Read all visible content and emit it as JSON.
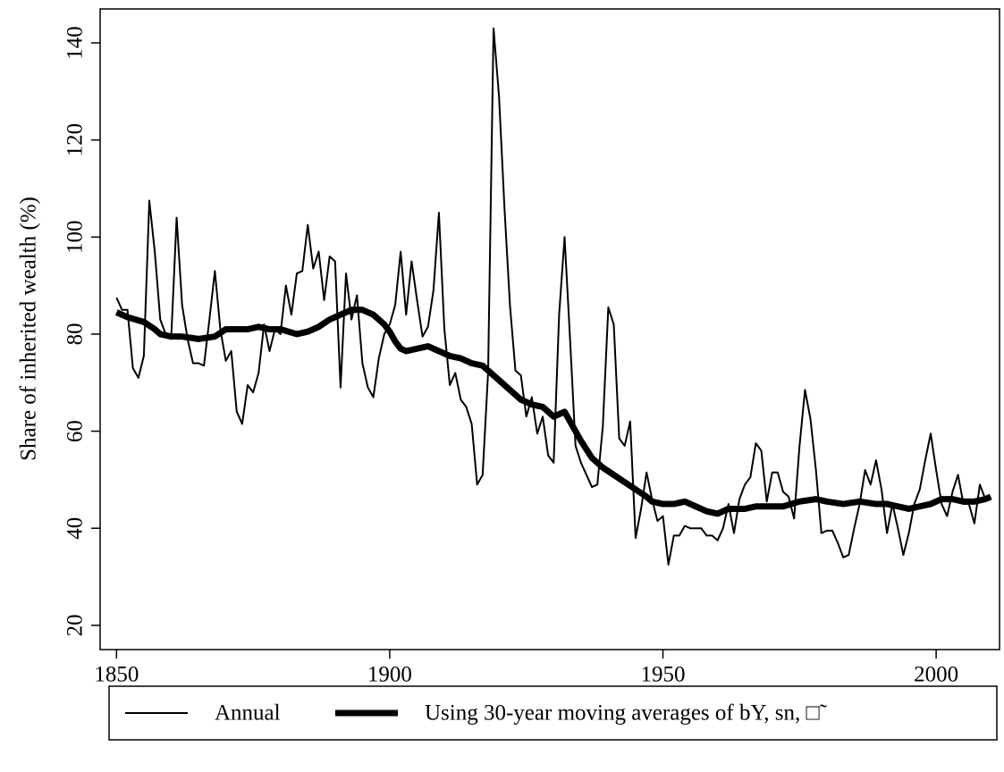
{
  "chart_data": {
    "type": "line",
    "y_label": "Share of inherited wealth (%)",
    "xlim": [
      1847,
      2011.6
    ],
    "ylim": [
      15,
      147
    ],
    "xticks": [
      1850,
      1900,
      1950,
      2000
    ],
    "yticks": [
      20,
      40,
      60,
      80,
      100,
      120,
      140
    ],
    "series": [
      {
        "name": "Annual",
        "color": "#000000",
        "width": 2,
        "x": [
          1850,
          1851,
          1852,
          1853,
          1854,
          1855,
          1856,
          1857,
          1858,
          1859,
          1860,
          1861,
          1862,
          1863,
          1864,
          1865,
          1866,
          1867,
          1868,
          1869,
          1870,
          1871,
          1872,
          1873,
          1874,
          1875,
          1876,
          1877,
          1878,
          1879,
          1880,
          1881,
          1882,
          1883,
          1884,
          1885,
          1886,
          1887,
          1888,
          1889,
          1890,
          1891,
          1892,
          1893,
          1894,
          1895,
          1896,
          1897,
          1898,
          1899,
          1900,
          1901,
          1902,
          1903,
          1904,
          1905,
          1906,
          1907,
          1908,
          1909,
          1910,
          1911,
          1912,
          1913,
          1914,
          1915,
          1916,
          1917,
          1918,
          1919,
          1920,
          1921,
          1922,
          1923,
          1924,
          1925,
          1926,
          1927,
          1928,
          1929,
          1930,
          1931,
          1932,
          1933,
          1934,
          1935,
          1936,
          1937,
          1938,
          1939,
          1940,
          1941,
          1942,
          1943,
          1944,
          1945,
          1946,
          1947,
          1948,
          1949,
          1950,
          1951,
          1952,
          1953,
          1954,
          1955,
          1956,
          1957,
          1958,
          1959,
          1960,
          1961,
          1962,
          1963,
          1964,
          1965,
          1966,
          1967,
          1968,
          1969,
          1970,
          1971,
          1972,
          1973,
          1974,
          1975,
          1976,
          1977,
          1978,
          1979,
          1980,
          1981,
          1982,
          1983,
          1984,
          1985,
          1986,
          1987,
          1988,
          1989,
          1990,
          1991,
          1992,
          1993,
          1994,
          1995,
          1996,
          1997,
          1998,
          1999,
          2000,
          2001,
          2002,
          2003,
          2004,
          2005,
          2006,
          2007,
          2008,
          2009,
          2010
        ],
        "values": [
          87.5,
          85,
          85,
          73,
          71,
          75.5,
          107.5,
          97,
          83,
          80,
          79,
          104,
          86,
          79,
          74,
          74,
          73.5,
          83,
          93,
          81,
          74.5,
          76.5,
          64,
          61.5,
          69.5,
          68,
          72,
          82,
          76.5,
          81,
          80,
          90,
          84,
          92.5,
          93,
          102.5,
          93.5,
          97,
          87,
          96,
          95,
          69,
          92.5,
          83,
          88,
          74,
          69,
          67,
          75,
          80,
          82,
          86,
          97,
          84,
          95,
          87,
          79.5,
          81.5,
          89,
          105,
          81,
          69.5,
          72,
          66.5,
          65,
          61.5,
          49,
          51,
          72,
          143,
          129,
          106,
          86,
          72.5,
          71.5,
          63,
          67,
          59.5,
          63,
          55,
          53.5,
          84,
          100,
          79,
          57,
          53.5,
          51,
          48.5,
          49,
          61,
          85.5,
          82,
          58.5,
          57,
          62,
          38,
          44,
          51.5,
          46,
          41.5,
          42.5,
          32.5,
          38.5,
          38.5,
          40.5,
          40,
          40,
          40,
          38.5,
          38.5,
          37.5,
          40,
          45,
          39,
          46,
          49,
          50.5,
          57.5,
          56,
          45.5,
          51.5,
          51.5,
          47.5,
          46.5,
          42,
          57,
          68.5,
          62.5,
          52,
          39,
          39.5,
          39.5,
          37,
          34,
          34.5,
          40,
          45,
          52,
          49,
          54,
          48,
          39,
          45,
          40,
          34.5,
          39,
          45,
          48,
          54,
          59.5,
          52,
          45,
          42.5,
          47.5,
          51,
          45,
          45,
          41,
          49,
          46,
          46.5
        ]
      },
      {
        "name": "Using 30-year moving averages of bY, sn, □̃",
        "color": "#000000",
        "width": 7,
        "x": [
          1850,
          1852,
          1855,
          1857,
          1858,
          1860,
          1862,
          1865,
          1868,
          1870,
          1872,
          1874,
          1876,
          1878,
          1880,
          1883,
          1885,
          1887,
          1889,
          1891,
          1893,
          1895,
          1897,
          1899,
          1900,
          1901,
          1902,
          1903,
          1905,
          1907,
          1909,
          1911,
          1913,
          1915,
          1917,
          1918,
          1920,
          1922,
          1924,
          1926,
          1928,
          1930,
          1931,
          1932,
          1933,
          1935,
          1937,
          1939,
          1941,
          1943,
          1945,
          1947,
          1948,
          1950,
          1952,
          1954,
          1956,
          1958,
          1960,
          1962,
          1965,
          1967,
          1970,
          1972,
          1975,
          1978,
          1980,
          1983,
          1986,
          1989,
          1991,
          1993,
          1995,
          1997,
          1999,
          2001,
          2003,
          2005,
          2007,
          2009,
          2010
        ],
        "values": [
          84.5,
          83.5,
          82.5,
          81,
          80,
          79.5,
          79.5,
          79,
          79.5,
          81,
          81,
          81,
          81.5,
          81,
          81,
          80,
          80.5,
          81.5,
          83,
          84,
          85,
          85,
          84,
          82,
          80.5,
          78.5,
          77,
          76.5,
          77,
          77.5,
          76.5,
          75.5,
          75,
          74,
          73.5,
          72.5,
          70.5,
          68.5,
          66.5,
          65.5,
          65,
          63,
          63.5,
          64,
          62,
          58,
          54.5,
          52.5,
          51,
          49.5,
          48,
          46.5,
          45.5,
          45,
          45,
          45.5,
          44.5,
          43.5,
          43,
          44,
          44,
          44.5,
          44.5,
          44.5,
          45.5,
          46,
          45.5,
          45,
          45.5,
          45,
          45,
          44.5,
          44,
          44.5,
          45,
          46,
          46,
          45.5,
          45.5,
          46,
          46.5
        ]
      }
    ]
  }
}
